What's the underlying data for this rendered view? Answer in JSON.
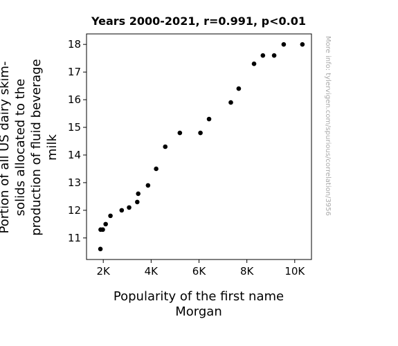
{
  "colors": {
    "point": "#000000",
    "frame": "#000000",
    "credit": "#aaaaaa"
  },
  "chart_data": {
    "type": "scatter",
    "title": "Years 2000-2021, r=0.991, p<0.01",
    "xlabel": [
      "Popularity of the first name",
      "Morgan"
    ],
    "ylabel": [
      "Portion of all US dairy skim-",
      "solids allocated to the",
      "production of fluid beverage",
      "milk"
    ],
    "credit": "More info: tylervigen.com/spurious/correlation/3956",
    "xlim": [
      1300,
      10700
    ],
    "ylim": [
      10.22,
      18.38
    ],
    "xticks": [
      2000,
      4000,
      6000,
      8000,
      10000
    ],
    "xtick_labels": [
      "2K",
      "4K",
      "6K",
      "8K",
      "10K"
    ],
    "yticks": [
      11,
      12,
      13,
      14,
      15,
      16,
      17,
      18
    ],
    "ytick_labels": [
      "11",
      "12",
      "13",
      "14",
      "15",
      "16",
      "17",
      "18"
    ],
    "grid": false,
    "points": [
      {
        "x": 1880,
        "y": 10.6
      },
      {
        "x": 1890,
        "y": 11.3
      },
      {
        "x": 1980,
        "y": 11.3
      },
      {
        "x": 2100,
        "y": 11.5
      },
      {
        "x": 2300,
        "y": 11.8
      },
      {
        "x": 2770,
        "y": 12.0
      },
      {
        "x": 3080,
        "y": 12.1
      },
      {
        "x": 3420,
        "y": 12.3
      },
      {
        "x": 3460,
        "y": 12.6
      },
      {
        "x": 3870,
        "y": 12.9
      },
      {
        "x": 4210,
        "y": 13.5
      },
      {
        "x": 4590,
        "y": 14.3
      },
      {
        "x": 5200,
        "y": 14.8
      },
      {
        "x": 6060,
        "y": 14.8
      },
      {
        "x": 6420,
        "y": 15.3
      },
      {
        "x": 7330,
        "y": 15.9
      },
      {
        "x": 7660,
        "y": 16.4
      },
      {
        "x": 8300,
        "y": 17.3
      },
      {
        "x": 8670,
        "y": 17.6
      },
      {
        "x": 9140,
        "y": 17.6
      },
      {
        "x": 9540,
        "y": 18.0
      },
      {
        "x": 10320,
        "y": 18.0
      }
    ]
  }
}
